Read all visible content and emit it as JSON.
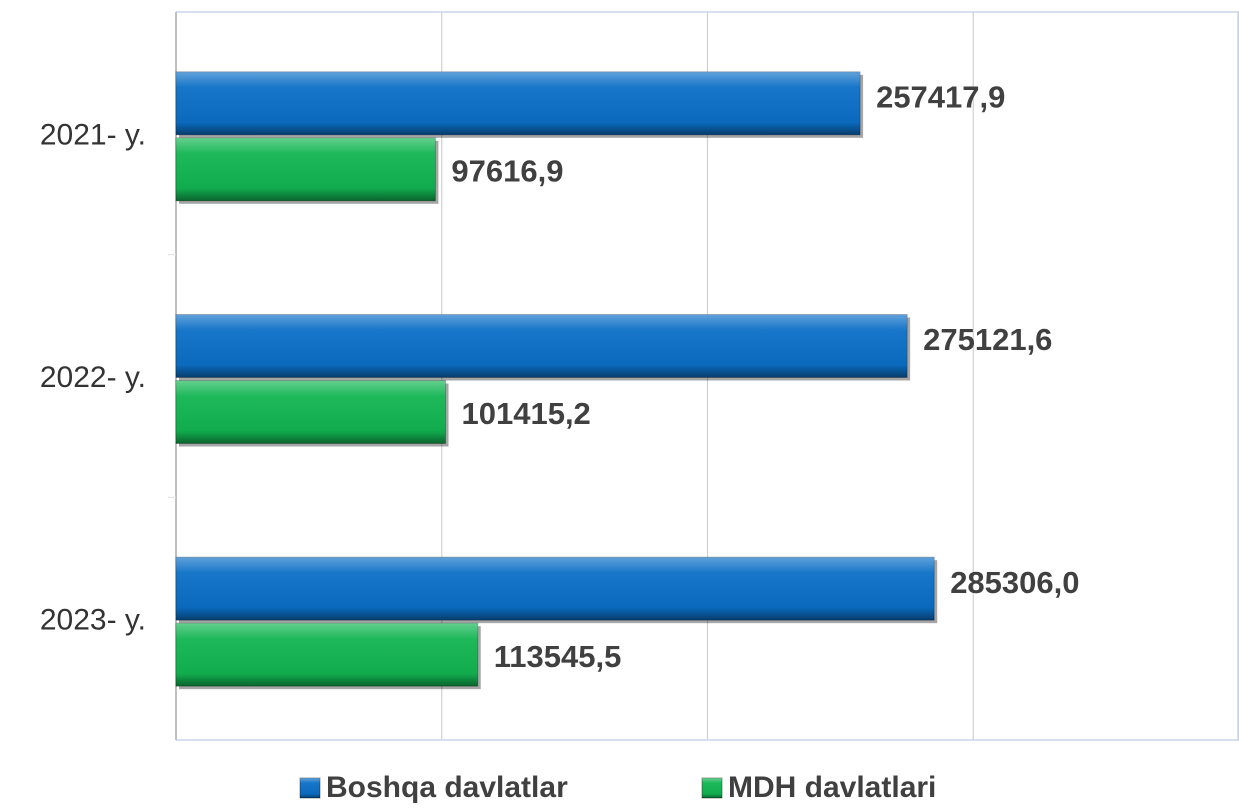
{
  "chart_data": {
    "type": "hbar",
    "categories": [
      "2021- y.",
      "2022- y.",
      "2023- y."
    ],
    "series": [
      {
        "name": "Boshqa davlatlar",
        "color": "#0b6fc6",
        "values": [
          257417.9,
          275121.6,
          285306.0
        ],
        "value_labels": [
          "257417,9",
          "275121,6",
          "285306,0"
        ]
      },
      {
        "name": "MDH davlatlari",
        "color": "#12b552",
        "values": [
          97616.9,
          101415.2,
          113545.5
        ],
        "value_labels": [
          "97616,9",
          "101415,2",
          "113545,5"
        ]
      }
    ],
    "xlim": [
      0,
      400000
    ],
    "xticks": [
      0,
      100000,
      200000,
      300000,
      400000
    ],
    "grid": true,
    "legend": "bottom"
  }
}
